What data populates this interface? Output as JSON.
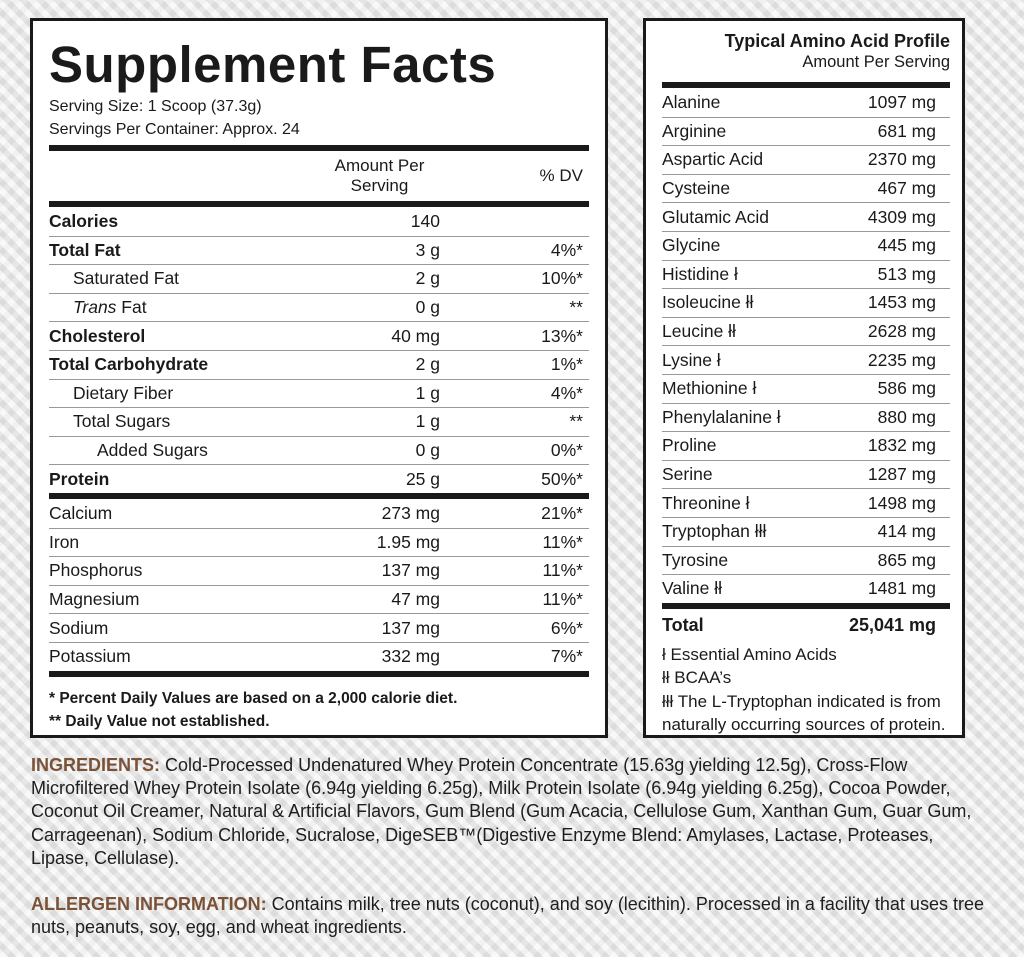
{
  "supplement_facts": {
    "title": "Supplement Facts",
    "serving_size": "Serving Size: 1 Scoop (37.3g)",
    "servings_per_container": "Servings Per Container: Approx. 24",
    "col_amount": "Amount Per Serving",
    "col_dv": "% DV",
    "rows": [
      {
        "name": "Calories",
        "amount": "140",
        "dv": ""
      },
      {
        "name": "Total Fat",
        "amount": "3 g",
        "dv": "4%*"
      },
      {
        "name": "Saturated Fat",
        "amount": "2 g",
        "dv": "10%*"
      },
      {
        "name_italic": "Trans",
        "name": " Fat",
        "amount": "0 g",
        "dv": "**"
      },
      {
        "name": "Cholesterol",
        "amount": "40 mg",
        "dv": "13%*"
      },
      {
        "name": "Total Carbohydrate",
        "amount": "2 g",
        "dv": "1%*"
      },
      {
        "name": "Dietary Fiber",
        "amount": "1 g",
        "dv": "4%*"
      },
      {
        "name": "Total Sugars",
        "amount": "1 g",
        "dv": "**"
      },
      {
        "name": "Added Sugars",
        "amount": "0 g",
        "dv": "0%*"
      },
      {
        "name": "Protein",
        "amount": "25 g",
        "dv": "50%*"
      }
    ],
    "minerals": [
      {
        "name": "Calcium",
        "amount": "273 mg",
        "dv": "21%*"
      },
      {
        "name": "Iron",
        "amount": "1.95 mg",
        "dv": "11%*"
      },
      {
        "name": "Phosphorus",
        "amount": "137 mg",
        "dv": "11%*"
      },
      {
        "name": "Magnesium",
        "amount": "47 mg",
        "dv": "11%*"
      },
      {
        "name": "Sodium",
        "amount": "137 mg",
        "dv": "6%*"
      },
      {
        "name": "Potassium",
        "amount": "332 mg",
        "dv": "7%*"
      }
    ],
    "footnote_1": "* Percent Daily Values are based on a 2,000 calorie diet.",
    "footnote_2": "** Daily Value not established."
  },
  "amino": {
    "title": "Typical Amino Acid Profile",
    "subtitle": "Amount Per Serving",
    "rows": [
      {
        "name": "Alanine",
        "value": "1097 mg"
      },
      {
        "name": "Arginine",
        "value": "681 mg"
      },
      {
        "name": "Aspartic Acid",
        "value": "2370 mg"
      },
      {
        "name": "Cysteine",
        "value": "467 mg"
      },
      {
        "name": "Glutamic Acid",
        "value": "4309 mg"
      },
      {
        "name": "Glycine",
        "value": "445 mg"
      },
      {
        "name": "Histidine ł",
        "value": "513 mg"
      },
      {
        "name": "Isoleucine łł",
        "value": "1453 mg"
      },
      {
        "name": "Leucine łł",
        "value": "2628 mg"
      },
      {
        "name": "Lysine ł",
        "value": "2235 mg"
      },
      {
        "name": "Methionine ł",
        "value": "586 mg"
      },
      {
        "name": "Phenylalanine ł",
        "value": "880 mg"
      },
      {
        "name": "Proline",
        "value": "1832 mg"
      },
      {
        "name": "Serine",
        "value": "1287 mg"
      },
      {
        "name": "Threonine ł",
        "value": "1498 mg"
      },
      {
        "name": "Tryptophan łłł",
        "value": "414 mg"
      },
      {
        "name": "Tyrosine",
        "value": "865 mg"
      },
      {
        "name": "Valine łł",
        "value": "1481 mg"
      }
    ],
    "total_label": "Total",
    "total_value": "25,041 mg",
    "notes": [
      "ł Essential Amino Acids",
      "łł BCAA’s",
      "łłł The L-Tryptophan indicated is from naturally occurring sources of protein."
    ]
  },
  "ingredients": {
    "label": "INGREDIENTS:",
    "text": " Cold-Processed Undenatured Whey Protein Concentrate (15.63g yielding 12.5g), Cross-Flow Microfiltered Whey Protein Isolate (6.94g yielding 6.25g), Milk Protein Isolate (6.94g yielding 6.25g), Cocoa Powder, Coconut Oil Creamer, Natural & Artificial Flavors, Gum Blend (Gum Acacia, Cellulose Gum, Xanthan Gum, Guar Gum, Carrageenan), Sodium Chloride, Sucralose, DigeSEB™(Digestive Enzyme Blend: Amylases, Lactase, Proteases, Lipase, Cellulase)."
  },
  "allergen": {
    "label": "ALLERGEN INFORMATION:",
    "text": " Contains milk, tree nuts (coconut), and soy (lecithin). Processed in a facility that uses tree nuts, peanuts, soy, egg, and wheat ingredients."
  },
  "colors": {
    "label_brown": "#7a5238",
    "rule": "#1a1a1a"
  }
}
